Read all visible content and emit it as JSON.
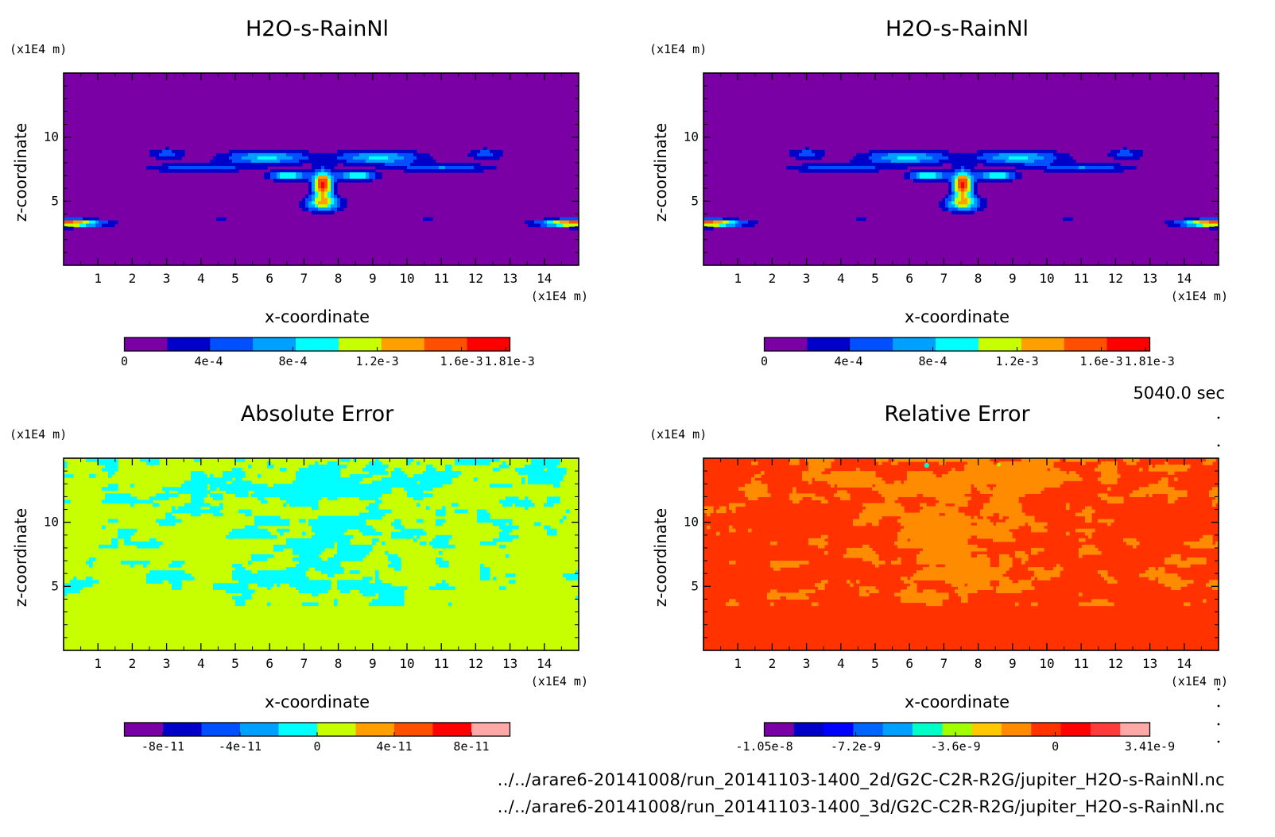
{
  "time_label": "5040.0 sec",
  "files": [
    "../../arare6-20141008/run_20141103-1400_2d/G2C-C2R-R2G/jupiter_H2O-s-RainNl.nc",
    "../../arare6-20141008/run_20141103-1400_3d/G2C-C2R-R2G/jupiter_H2O-s-RainNl.nc"
  ],
  "chart_data": [
    {
      "type": "heatmap",
      "title": "H2O-s-RainNl",
      "xlabel": "x-coordinate",
      "ylabel": "z-coordinate",
      "x_unit": "(x1E4 m)",
      "y_unit": "(x1E4 m)",
      "xlim": [
        0,
        15
      ],
      "ylim": [
        0,
        15
      ],
      "xticks": [
        1,
        2,
        3,
        4,
        5,
        6,
        7,
        8,
        9,
        10,
        11,
        12,
        13,
        14
      ],
      "yticks": [
        5,
        10
      ],
      "field": "plume",
      "colorbar": {
        "colors": [
          "#7a00a6",
          "#0000c8",
          "#0050ff",
          "#00a0ff",
          "#00ffff",
          "#c8ff00",
          "#ffa000",
          "#ff5000",
          "#ff0000"
        ],
        "tick_labels": [
          "0",
          "4e-4",
          "8e-4",
          "1.2e-3",
          "1.6e-3",
          "1.81e-3"
        ],
        "tick_values": [
          0,
          0.0004,
          0.0008,
          0.0012,
          0.0016,
          0.00181
        ],
        "range": [
          0,
          0.00183
        ]
      }
    },
    {
      "type": "heatmap",
      "title": "H2O-s-RainNl",
      "xlabel": "x-coordinate",
      "ylabel": "z-coordinate",
      "x_unit": "(x1E4 m)",
      "y_unit": "(x1E4 m)",
      "xlim": [
        0,
        15
      ],
      "ylim": [
        0,
        15
      ],
      "xticks": [
        1,
        2,
        3,
        4,
        5,
        6,
        7,
        8,
        9,
        10,
        11,
        12,
        13,
        14
      ],
      "yticks": [
        5,
        10
      ],
      "field": "plume",
      "colorbar": {
        "colors": [
          "#7a00a6",
          "#0000c8",
          "#0050ff",
          "#00a0ff",
          "#00ffff",
          "#c8ff00",
          "#ffa000",
          "#ff5000",
          "#ff0000"
        ],
        "tick_labels": [
          "0",
          "4e-4",
          "8e-4",
          "1.2e-3",
          "1.6e-3",
          "1.81e-3"
        ],
        "tick_values": [
          0,
          0.0004,
          0.0008,
          0.0012,
          0.0016,
          0.00181
        ],
        "range": [
          0,
          0.00183
        ]
      }
    },
    {
      "type": "heatmap",
      "title": "Absolute Error",
      "xlabel": "x-coordinate",
      "ylabel": "z-coordinate",
      "x_unit": "(x1E4 m)",
      "y_unit": "(x1E4 m)",
      "xlim": [
        0,
        15
      ],
      "ylim": [
        0,
        15
      ],
      "xticks": [
        1,
        2,
        3,
        4,
        5,
        6,
        7,
        8,
        9,
        10,
        11,
        12,
        13,
        14
      ],
      "yticks": [
        5,
        10
      ],
      "field": "abs_error",
      "background_color": "#c8ff00",
      "pattern_color": "#00ffff",
      "colorbar": {
        "colors": [
          "#7a00a6",
          "#0000c8",
          "#0050ff",
          "#00a0ff",
          "#00ffff",
          "#c8ff00",
          "#ffa000",
          "#ff5000",
          "#ff0000",
          "#ffa8a8"
        ],
        "tick_labels": [
          "-8e-11",
          "-4e-11",
          "0",
          "4e-11",
          "8e-11"
        ],
        "tick_values": [
          -8e-11,
          -4e-11,
          0,
          4e-11,
          8e-11
        ],
        "range": [
          -1e-10,
          1e-10
        ]
      }
    },
    {
      "type": "heatmap",
      "title": "Relative Error",
      "xlabel": "x-coordinate",
      "ylabel": "z-coordinate",
      "x_unit": "(x1E4 m)",
      "y_unit": "(x1E4 m)",
      "xlim": [
        0,
        15
      ],
      "ylim": [
        0,
        15
      ],
      "xticks": [
        1,
        2,
        3,
        4,
        5,
        6,
        7,
        8,
        9,
        10,
        11,
        12,
        13,
        14
      ],
      "yticks": [
        5,
        10
      ],
      "field": "rel_error",
      "background_color": "#ff3200",
      "pattern_color": "#ff8c00",
      "colorbar": {
        "colors": [
          "#7a00a6",
          "#0000c8",
          "#0000ff",
          "#0064ff",
          "#00a0ff",
          "#00ffc8",
          "#a0ff00",
          "#ffc800",
          "#ff8c00",
          "#ff3200",
          "#ff0000",
          "#ff3c3c",
          "#ffa8a8"
        ],
        "tick_labels": [
          "-1.05e-8",
          "-7.2e-9",
          "-3.6e-9",
          "0",
          "3.41e-9"
        ],
        "tick_values": [
          -1.05e-08,
          -7.2e-09,
          -3.6e-09,
          0,
          3.41e-09
        ],
        "range": [
          -1.05e-08,
          3.41e-09
        ]
      }
    }
  ]
}
